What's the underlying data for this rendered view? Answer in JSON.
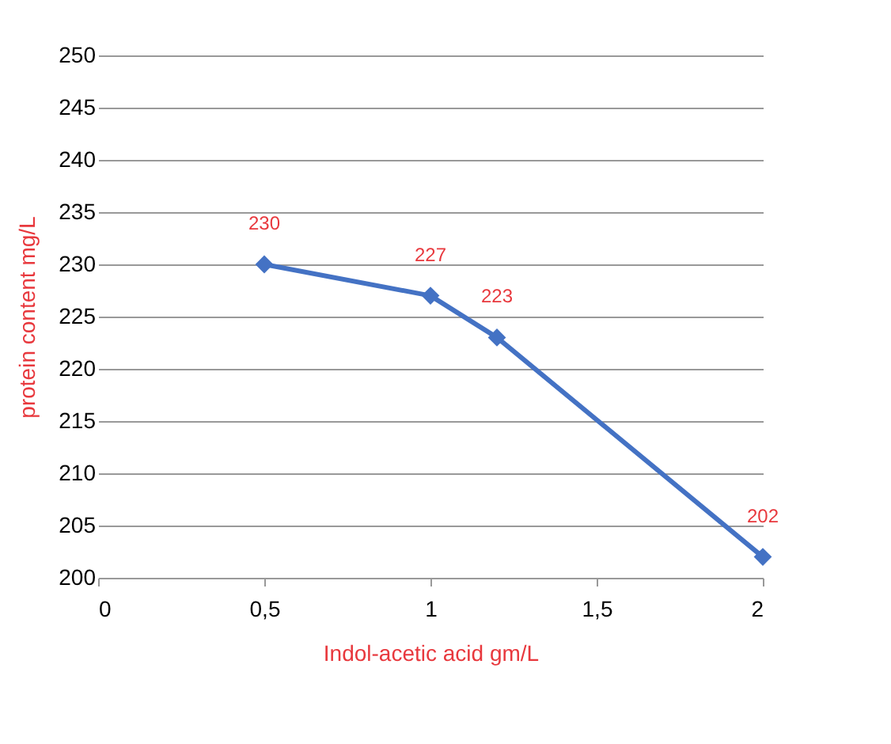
{
  "chart_data": {
    "type": "line",
    "xlabel": "Indol-acetic acid gm/L",
    "ylabel": "protein content mg/L",
    "x": [
      0.5,
      1,
      1.2,
      2
    ],
    "series": [
      {
        "color": "#4472c4",
        "values": [
          230,
          227,
          223,
          202
        ]
      }
    ],
    "xlim": [
      0,
      2
    ],
    "xticks": [
      0,
      {
        "value": 0.5,
        "label": "0,5"
      },
      1,
      {
        "value": 1.5,
        "label": "1,5"
      },
      2
    ],
    "ylim": [
      200,
      250
    ],
    "yticks": [
      200,
      205,
      210,
      215,
      220,
      225,
      230,
      235,
      240,
      245,
      250
    ],
    "grid": "y",
    "marker": "diamond",
    "line_style": "solid",
    "data_labels": true
  }
}
